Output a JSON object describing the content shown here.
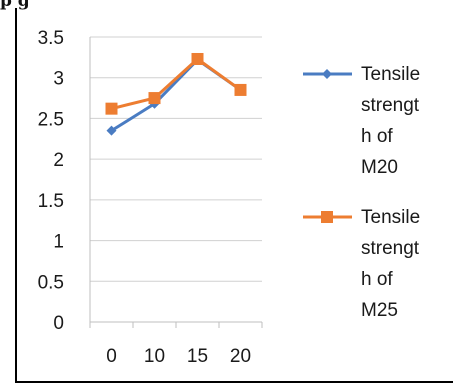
{
  "header_fragment": "p                                                          g",
  "chart_data": {
    "type": "line",
    "categories": [
      "0",
      "10",
      "15",
      "20"
    ],
    "y_ticks": [
      "0",
      "0.5",
      "1",
      "1.5",
      "2",
      "2.5",
      "3",
      "3.5"
    ],
    "ylim": [
      0,
      3.5
    ],
    "grid": true,
    "legend_position": "right",
    "series": [
      {
        "name_lines": [
          "Tensile",
          "strengt",
          "h of",
          "M20"
        ],
        "values": [
          2.35,
          2.68,
          3.22,
          2.85
        ],
        "color": "#4a7cc2",
        "marker": "diamond"
      },
      {
        "name_lines": [
          "Tensile",
          "strengt",
          "h of",
          "M25"
        ],
        "values": [
          2.62,
          2.75,
          3.23,
          2.85
        ],
        "color": "#ed7d31",
        "marker": "square"
      }
    ]
  }
}
